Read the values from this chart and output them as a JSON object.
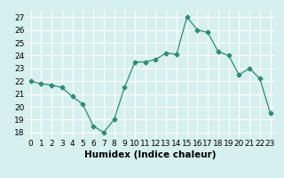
{
  "x": [
    0,
    1,
    2,
    3,
    4,
    5,
    6,
    7,
    8,
    9,
    10,
    11,
    12,
    13,
    14,
    15,
    16,
    17,
    18,
    19,
    20,
    21,
    22,
    23
  ],
  "y": [
    22.0,
    21.8,
    21.7,
    21.5,
    20.8,
    20.2,
    18.5,
    18.0,
    19.0,
    21.5,
    23.5,
    23.5,
    23.7,
    24.2,
    24.1,
    27.0,
    26.0,
    25.8,
    24.3,
    24.0,
    22.5,
    23.0,
    22.2,
    19.5
  ],
  "xlabel": "Humidex (Indice chaleur)",
  "ylabel": "",
  "xlim": [
    -0.5,
    23.5
  ],
  "ylim": [
    17.5,
    27.5
  ],
  "yticks": [
    18,
    19,
    20,
    21,
    22,
    23,
    24,
    25,
    26,
    27
  ],
  "xticks": [
    0,
    1,
    2,
    3,
    4,
    5,
    6,
    7,
    8,
    9,
    10,
    11,
    12,
    13,
    14,
    15,
    16,
    17,
    18,
    19,
    20,
    21,
    22,
    23
  ],
  "line_color": "#2e8b74",
  "marker": "D",
  "marker_size": 2.5,
  "bg_color": "#d6f0ef",
  "grid_color": "#ffffff",
  "axes_face_color": "#d6f0ef",
  "tick_label_fontsize": 6.5,
  "xlabel_fontsize": 7.5
}
